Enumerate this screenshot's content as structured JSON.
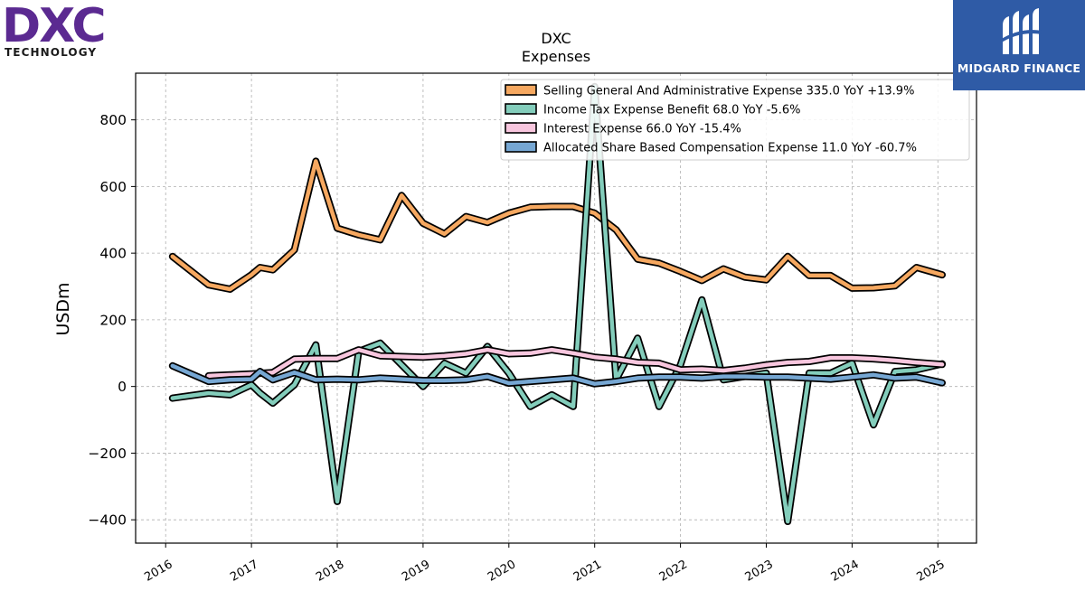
{
  "branding": {
    "left_logo_text": "DXC",
    "left_logo_sub": "TECHNOLOGY",
    "left_logo_color": "#5b2a91",
    "right_logo_name": "MIDGARD FINANCE",
    "right_logo_bg": "#2f5ba6"
  },
  "chart_data": {
    "type": "line",
    "title": "DXC",
    "subtitle": "Expenses",
    "xlabel": "",
    "ylabel": "USDm",
    "xlim": [
      2015.65,
      2025.45
    ],
    "ylim": [
      -470,
      940
    ],
    "x_ticks": [
      2016,
      2017,
      2018,
      2019,
      2020,
      2021,
      2022,
      2023,
      2024,
      2025
    ],
    "x_tick_labels": [
      "2016",
      "2017",
      "2018",
      "2019",
      "2020",
      "2021",
      "2022",
      "2023",
      "2024",
      "2025"
    ],
    "y_ticks": [
      -400,
      -200,
      0,
      200,
      400,
      600,
      800
    ],
    "y_tick_labels": [
      "−400",
      "−200",
      "0",
      "200",
      "400",
      "600",
      "800"
    ],
    "grid": true,
    "legend_position": "top-right",
    "series": [
      {
        "name": "Selling General And Administrative Expense  335.0 YoY +13.9%",
        "color": "#f6a860",
        "x": [
          2016.08,
          2016.5,
          2016.75,
          2017.0,
          2017.1,
          2017.25,
          2017.5,
          2017.75,
          2018.0,
          2018.25,
          2018.5,
          2018.75,
          2019.0,
          2019.25,
          2019.5,
          2019.75,
          2020.0,
          2020.25,
          2020.5,
          2020.75,
          2021.0,
          2021.25,
          2021.5,
          2021.75,
          2022.0,
          2022.25,
          2022.5,
          2022.75,
          2023.0,
          2023.25,
          2023.5,
          2023.75,
          2024.0,
          2024.25,
          2024.5,
          2024.75,
          2025.05
        ],
        "y": [
          390,
          305,
          292,
          335,
          357,
          350,
          410,
          676,
          475,
          455,
          440,
          573,
          490,
          458,
          510,
          492,
          520,
          538,
          540,
          540,
          520,
          470,
          382,
          370,
          345,
          318,
          353,
          328,
          320,
          390,
          333,
          333,
          295,
          296,
          302,
          357,
          335
        ]
      },
      {
        "name": "Income Tax Expense Benefit  68.0 YoY -5.6%",
        "color": "#83cdbb",
        "x": [
          2016.08,
          2016.5,
          2016.75,
          2017.0,
          2017.1,
          2017.25,
          2017.5,
          2017.75,
          2018.0,
          2018.25,
          2018.5,
          2018.75,
          2019.0,
          2019.25,
          2019.5,
          2019.75,
          2020.0,
          2020.25,
          2020.5,
          2020.75,
          2021.0,
          2021.25,
          2021.5,
          2021.75,
          2022.0,
          2022.25,
          2022.5,
          2022.75,
          2023.0,
          2023.25,
          2023.5,
          2023.75,
          2024.0,
          2024.25,
          2024.5,
          2024.75,
          2025.05
        ],
        "y": [
          -35,
          -20,
          -25,
          5,
          -20,
          -50,
          5,
          125,
          -345,
          105,
          130,
          65,
          0,
          70,
          40,
          120,
          40,
          -60,
          -25,
          -60,
          900,
          20,
          145,
          -60,
          65,
          260,
          20,
          30,
          40,
          -405,
          40,
          40,
          70,
          -115,
          45,
          50,
          68
        ]
      },
      {
        "name": "Interest Expense  66.0 YoY -15.4%",
        "color": "#f8c6de",
        "x": [
          2016.5,
          2017.0,
          2017.25,
          2017.5,
          2017.75,
          2018.0,
          2018.25,
          2018.5,
          2018.75,
          2019.0,
          2019.25,
          2019.5,
          2019.75,
          2020.0,
          2020.25,
          2020.5,
          2020.75,
          2021.0,
          2021.25,
          2021.5,
          2021.75,
          2022.0,
          2022.25,
          2022.5,
          2022.75,
          2023.0,
          2023.25,
          2023.5,
          2023.75,
          2024.0,
          2024.25,
          2024.5,
          2024.75,
          2025.05
        ],
        "y": [
          32,
          38,
          42,
          82,
          84,
          84,
          110,
          92,
          90,
          88,
          92,
          98,
          110,
          98,
          100,
          110,
          100,
          88,
          82,
          72,
          70,
          50,
          52,
          48,
          55,
          65,
          72,
          75,
          86,
          86,
          83,
          78,
          72,
          66
        ]
      },
      {
        "name": "Allocated Share Based Compensation Expense  11.0 YoY -60.7%",
        "color": "#76a7d3",
        "x": [
          2016.08,
          2016.5,
          2016.75,
          2017.0,
          2017.1,
          2017.25,
          2017.5,
          2017.75,
          2018.0,
          2018.25,
          2018.5,
          2018.75,
          2019.0,
          2019.25,
          2019.5,
          2019.75,
          2020.0,
          2020.25,
          2020.5,
          2020.75,
          2021.0,
          2021.25,
          2021.5,
          2021.75,
          2022.0,
          2022.25,
          2022.5,
          2022.75,
          2023.0,
          2023.25,
          2023.5,
          2023.75,
          2024.0,
          2024.25,
          2024.5,
          2024.75,
          2025.05
        ],
        "y": [
          62,
          15,
          20,
          22,
          45,
          20,
          42,
          20,
          22,
          20,
          25,
          22,
          18,
          18,
          20,
          30,
          10,
          15,
          20,
          25,
          8,
          15,
          25,
          28,
          28,
          25,
          30,
          30,
          28,
          28,
          25,
          22,
          28,
          35,
          25,
          28,
          11
        ]
      }
    ]
  }
}
